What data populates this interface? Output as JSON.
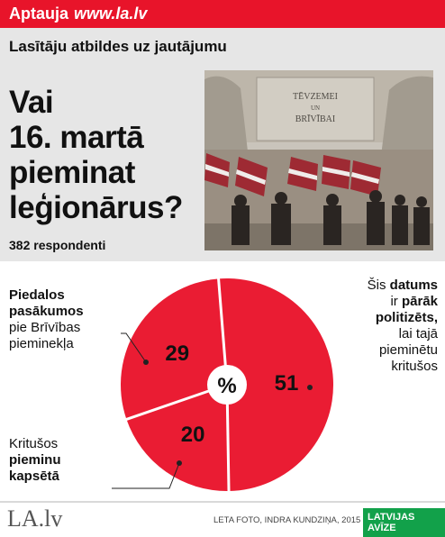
{
  "header": {
    "section": "Aptauja",
    "site": "www.la.lv"
  },
  "subtitle": "Lasītāju atbildes uz jautājumu",
  "question_lines": [
    "Vai",
    "16. martā",
    "pieminat",
    "leģionārus?"
  ],
  "respondents": "382 respondenti",
  "photo": {
    "monument_text_1": "TĒVZEMEI",
    "monument_text_2": "UN",
    "monument_text_3": "BRĪVĪBAI"
  },
  "chart_data": {
    "type": "pie",
    "center_label": "%",
    "slices": [
      {
        "value": 51,
        "label_bold_parts": [
          "datums",
          "pārāk politizēts"
        ],
        "label": "Šis datums ir pārāk politizēts, lai tajā pieminētu kritušos"
      },
      {
        "value": 20,
        "label": "Kritušos pieminu kapsētā"
      },
      {
        "value": 29,
        "label": "Piedalos pasākumos pie Brīvības pieminekļa"
      }
    ],
    "colors": {
      "slice": "#ea1c33",
      "divider": "#ffffff",
      "label_line": "#222222"
    }
  },
  "labels": {
    "right": {
      "l1a": "Šis ",
      "l1b": "datums",
      "l2a": "ir ",
      "l2b": "pārāk",
      "l3": "politizēts,",
      "l4": "lai tajā",
      "l5": "pieminētu",
      "l6": "kritušos"
    },
    "left_top": {
      "l1": "Piedalos",
      "l2": "pasākumos",
      "l3": "pie Brīvības",
      "l4": "pieminekļa"
    },
    "left_bottom": {
      "l1": "Kritušos",
      "l2a": "",
      "l2b": "pieminu",
      "l3": "kapsētā"
    }
  },
  "footer": {
    "logo": "LA.lv",
    "credit": "LETA FOTO, INDRA KUNDZIŅA, 2015",
    "brand": "LATVIJAS AVĪZE"
  }
}
